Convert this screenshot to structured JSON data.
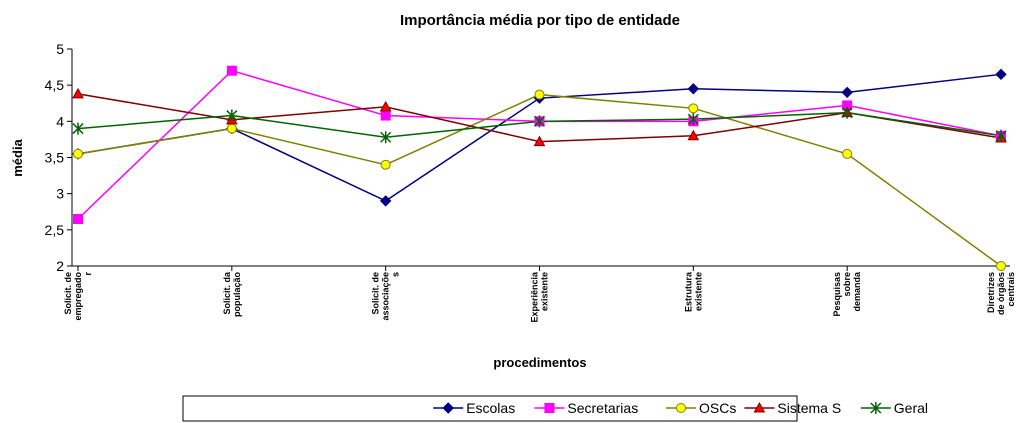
{
  "chart_data": {
    "type": "line",
    "title": "Importância média por tipo de entidade",
    "ylabel": "média",
    "xlabel": "procedimentos",
    "categories": [
      "Solicit. de\nempregado\nr",
      "Solicit. da\npopulação",
      "Solicit. de\nassociaçõe\ns",
      "Experiência\nexistente",
      "Estrutura\nexistente",
      "Pesquisas\nsobre\ndemanda",
      "Diretrizes\nde órgãos\ncentrais"
    ],
    "series": [
      {
        "name": "Escolas",
        "color": "#000080",
        "marker": "diamond",
        "values": [
          3.55,
          3.9,
          2.9,
          4.32,
          4.45,
          4.4,
          4.65
        ]
      },
      {
        "name": "Secretarias",
        "color": "#ff00ff",
        "marker": "square",
        "values": [
          2.65,
          4.7,
          4.08,
          4.0,
          4.0,
          4.22,
          3.8
        ]
      },
      {
        "name": "OSCs",
        "color": "#808000",
        "marker": "circle",
        "marker_fill": "#ffff00",
        "values": [
          3.55,
          3.9,
          3.4,
          4.37,
          4.18,
          3.55,
          2.0
        ]
      },
      {
        "name": "Sistema S",
        "color": "#800000",
        "marker": "triangle",
        "marker_fill": "#ff0000",
        "values": [
          4.38,
          4.02,
          4.2,
          3.72,
          3.8,
          4.12,
          3.77
        ]
      },
      {
        "name": "Geral",
        "color": "#006400",
        "marker": "star",
        "values": [
          3.9,
          4.08,
          3.78,
          4.0,
          4.03,
          4.12,
          3.8
        ]
      }
    ],
    "ylim": [
      2,
      5
    ],
    "yticks": [
      2,
      {
        "value": 2.5,
        "label": "2,5"
      },
      3,
      {
        "value": 3.5,
        "label": "3,5"
      },
      4,
      {
        "value": 4.5,
        "label": "4,5"
      },
      5
    ],
    "grid": false,
    "legend": "bottom"
  }
}
